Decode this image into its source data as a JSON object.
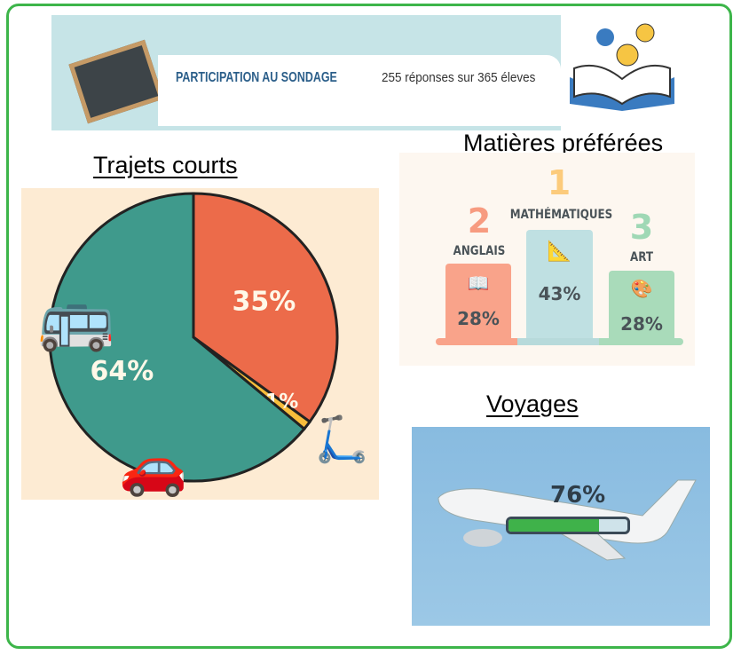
{
  "banner": {
    "title": "PARTICIPATION AU SONDAGE",
    "subtitle": "255 réponses sur 365 éleves"
  },
  "trajets": {
    "title": "Trajets courts"
  },
  "matieres": {
    "title": "Matières préférées",
    "items": [
      {
        "rank": "2",
        "name": "ANGLAIS",
        "pct": "28%",
        "color": "#f9a38a",
        "rank_color": "#f79b80"
      },
      {
        "rank": "1",
        "name": "MATHÉMATIQUES",
        "pct": "43%",
        "color": "#bfe0e2",
        "rank_color": "#fccb7c"
      },
      {
        "rank": "3",
        "name": "ART",
        "pct": "28%",
        "color": "#a9dbba",
        "rank_color": "#9fd8b5"
      }
    ]
  },
  "voyages": {
    "title": "Voyages",
    "pct": "76%",
    "value": 76
  },
  "chart_data": {
    "type": "pie",
    "title": "Trajets courts",
    "categories": [
      "Bus",
      "Trottinette",
      "Voiture"
    ],
    "values": [
      64,
      1,
      35
    ],
    "slices": [
      {
        "label": "35%",
        "value": 35,
        "color": "#ec6b4a",
        "icon": "car-icon"
      },
      {
        "label": "1%",
        "value": 1,
        "color": "#f8bd3b",
        "icon": "scooter-icon"
      },
      {
        "label": "64%",
        "value": 64,
        "color": "#3f9a8c",
        "icon": "bus-icon"
      }
    ]
  }
}
